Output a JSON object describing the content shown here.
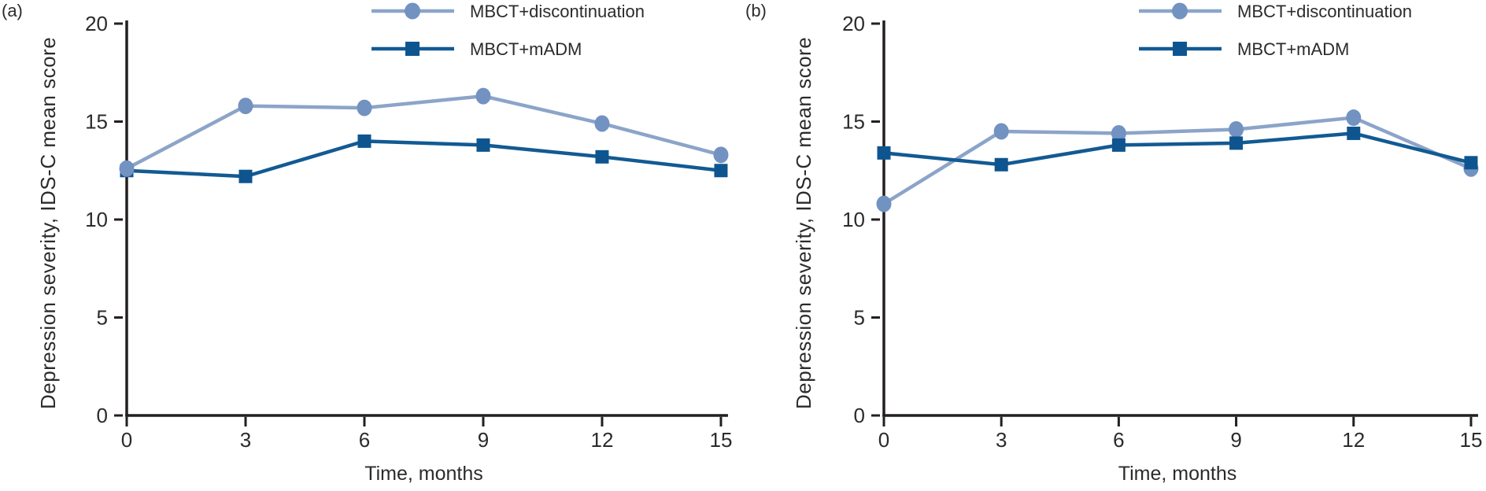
{
  "colors": {
    "axis": "#231f20",
    "text": "#2d2a2b",
    "background": "#ffffff",
    "light_series_line": "#8ca4c8",
    "light_series_marker": "#7292c1",
    "dark_series": "#0f5692"
  },
  "chart_data": [
    {
      "type": "line",
      "panel_label": "(a)",
      "xlabel": "Time, months",
      "ylabel": "Depression severity, IDS-C mean score",
      "x": [
        0,
        3,
        6,
        9,
        12,
        15
      ],
      "xticks": [
        0,
        3,
        6,
        9,
        12,
        15
      ],
      "yticks": [
        0,
        5,
        10,
        15,
        20
      ],
      "ylim": [
        0,
        20
      ],
      "xlim": [
        0,
        15
      ],
      "grid": false,
      "legend_position": "top-right",
      "series": [
        {
          "name": "MBCT+discontinuation",
          "marker": "circle",
          "color": "#8ca4c8",
          "marker_color": "#7292c1",
          "values": [
            12.6,
            15.8,
            15.7,
            16.3,
            14.9,
            13.3
          ]
        },
        {
          "name": "MBCT+mADM",
          "marker": "square",
          "color": "#125a93",
          "marker_color": "#0e5590",
          "values": [
            12.5,
            12.2,
            14.0,
            13.8,
            13.2,
            12.5
          ]
        }
      ]
    },
    {
      "type": "line",
      "panel_label": "(b)",
      "xlabel": "Time, months",
      "ylabel": "Depression severity, IDS-C mean score",
      "x": [
        0,
        3,
        6,
        9,
        12,
        15
      ],
      "xticks": [
        0,
        3,
        6,
        9,
        12,
        15
      ],
      "yticks": [
        0,
        5,
        10,
        15,
        20
      ],
      "ylim": [
        0,
        20
      ],
      "xlim": [
        0,
        15
      ],
      "grid": false,
      "legend_position": "top-right",
      "series": [
        {
          "name": "MBCT+discontinuation",
          "marker": "circle",
          "color": "#8ca4c8",
          "marker_color": "#7292c1",
          "values": [
            10.8,
            14.5,
            14.4,
            14.6,
            15.2,
            12.6
          ]
        },
        {
          "name": "MBCT+mADM",
          "marker": "square",
          "color": "#125a93",
          "marker_color": "#0e5590",
          "values": [
            13.4,
            12.8,
            13.8,
            13.9,
            14.4,
            12.9
          ]
        }
      ]
    }
  ]
}
